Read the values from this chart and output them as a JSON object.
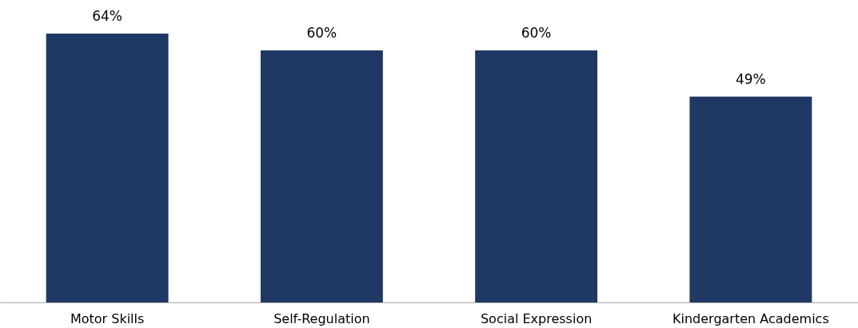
{
  "chart_data": {
    "type": "bar",
    "categories": [
      "Motor Skills",
      "Self-Regulation",
      "Social Expression",
      "Kindergarten Academics"
    ],
    "values": [
      64,
      60,
      60,
      49
    ],
    "value_labels": [
      "64%",
      "60%",
      "60%",
      "49%"
    ],
    "color": "#203864",
    "ylim": [
      0,
      72
    ],
    "tick_labels": "x",
    "grid": false
  }
}
